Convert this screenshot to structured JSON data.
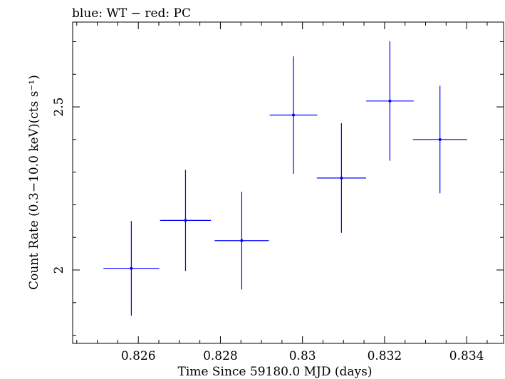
{
  "chart_data": {
    "type": "scatter",
    "title": "blue: WT − red: PC",
    "xlabel": "Time Since 59180.0 MJD (days)",
    "ylabel": "Count Rate (0.3−10.0 keV)(cts s⁻¹)",
    "xlim": [
      0.8244,
      0.8349
    ],
    "ylim": [
      1.775,
      2.76
    ],
    "log_y": false,
    "grid": false,
    "xticks": [
      {
        "value": 0.826,
        "label": "0.826"
      },
      {
        "value": 0.828,
        "label": "0.828"
      },
      {
        "value": 0.83,
        "label": "0.83"
      },
      {
        "value": 0.832,
        "label": "0.832"
      },
      {
        "value": 0.834,
        "label": "0.834"
      }
    ],
    "yticks": [
      {
        "value": 2,
        "label": "2"
      },
      {
        "value": 2.5,
        "label": "2.5"
      }
    ],
    "series": [
      {
        "color": "#0000ff",
        "points": [
          {
            "x": 0.82583,
            "xerr": 0.00068,
            "y": 2.005,
            "yerr": 0.145
          },
          {
            "x": 0.82715,
            "xerr": 0.00062,
            "y": 2.152,
            "yerr": 0.155
          },
          {
            "x": 0.82852,
            "xerr": 0.00066,
            "y": 2.09,
            "yerr": 0.15
          },
          {
            "x": 0.82978,
            "xerr": 0.00058,
            "y": 2.475,
            "yerr": 0.18
          },
          {
            "x": 0.83095,
            "xerr": 0.0006,
            "y": 2.282,
            "yerr": 0.168
          },
          {
            "x": 0.83213,
            "xerr": 0.00058,
            "y": 2.518,
            "yerr": 0.183
          },
          {
            "x": 0.83335,
            "xerr": 0.00066,
            "y": 2.4,
            "yerr": 0.165
          }
        ]
      }
    ]
  }
}
